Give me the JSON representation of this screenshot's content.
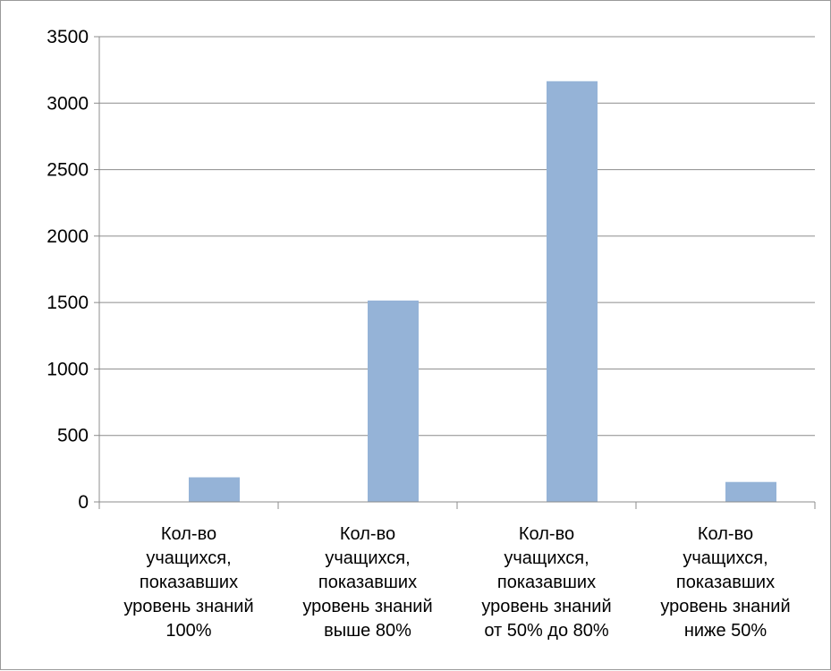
{
  "chart_data": {
    "type": "bar",
    "title": "",
    "xlabel": "",
    "ylabel": "",
    "ylim": [
      0,
      3500
    ],
    "yticks": [
      0,
      500,
      1000,
      1500,
      2000,
      2500,
      3000,
      3500
    ],
    "grid": true,
    "legend": "none",
    "categories": [
      [
        "Кол-во",
        "учащихся,",
        "показавших",
        "уровень знаний",
        "100%"
      ],
      [
        "Кол-во",
        "учащихся,",
        "показавших",
        "уровень знаний",
        "выше 80%"
      ],
      [
        "Кол-во",
        "учащихся,",
        "показавших",
        "уровень знаний",
        "от 50% до 80%"
      ],
      [
        "Кол-во",
        "учащихся,",
        "показавших",
        "уровень знаний",
        "ниже 50%"
      ]
    ],
    "values": [
      185,
      1515,
      3165,
      150
    ],
    "bar_color": "#95b3d7",
    "grid_color": "#8c8c8c",
    "axis_color": "#8c8c8c"
  }
}
